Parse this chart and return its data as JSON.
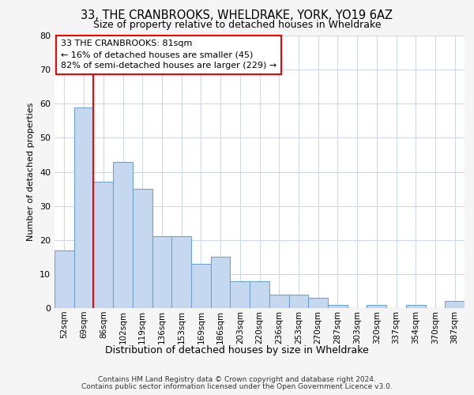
{
  "title1": "33, THE CRANBROOKS, WHELDRAKE, YORK, YO19 6AZ",
  "title2": "Size of property relative to detached houses in Wheldrake",
  "xlabel": "Distribution of detached houses by size in Wheldrake",
  "ylabel": "Number of detached properties",
  "categories": [
    "52sqm",
    "69sqm",
    "86sqm",
    "102sqm",
    "119sqm",
    "136sqm",
    "153sqm",
    "169sqm",
    "186sqm",
    "203sqm",
    "220sqm",
    "236sqm",
    "253sqm",
    "270sqm",
    "287sqm",
    "303sqm",
    "320sqm",
    "337sqm",
    "354sqm",
    "370sqm",
    "387sqm"
  ],
  "values": [
    17,
    59,
    37,
    43,
    35,
    21,
    21,
    13,
    15,
    8,
    8,
    4,
    4,
    3,
    1,
    0,
    1,
    0,
    1,
    0,
    2
  ],
  "bar_color": "#c5d8f0",
  "bar_edge_color": "#6ea4cc",
  "ylim": [
    0,
    80
  ],
  "yticks": [
    0,
    10,
    20,
    30,
    40,
    50,
    60,
    70,
    80
  ],
  "property_label": "33 THE CRANBROOKS: 81sqm",
  "annotation_line1": "← 16% of detached houses are smaller (45)",
  "annotation_line2": "82% of semi-detached houses are larger (229) →",
  "red_line_x": 2.0,
  "footer1": "Contains HM Land Registry data © Crown copyright and database right 2024.",
  "footer2": "Contains public sector information licensed under the Open Government Licence v3.0.",
  "bg_color": "#f5f5f5",
  "plot_bg_color": "#ffffff",
  "grid_color": "#d0d8e8"
}
